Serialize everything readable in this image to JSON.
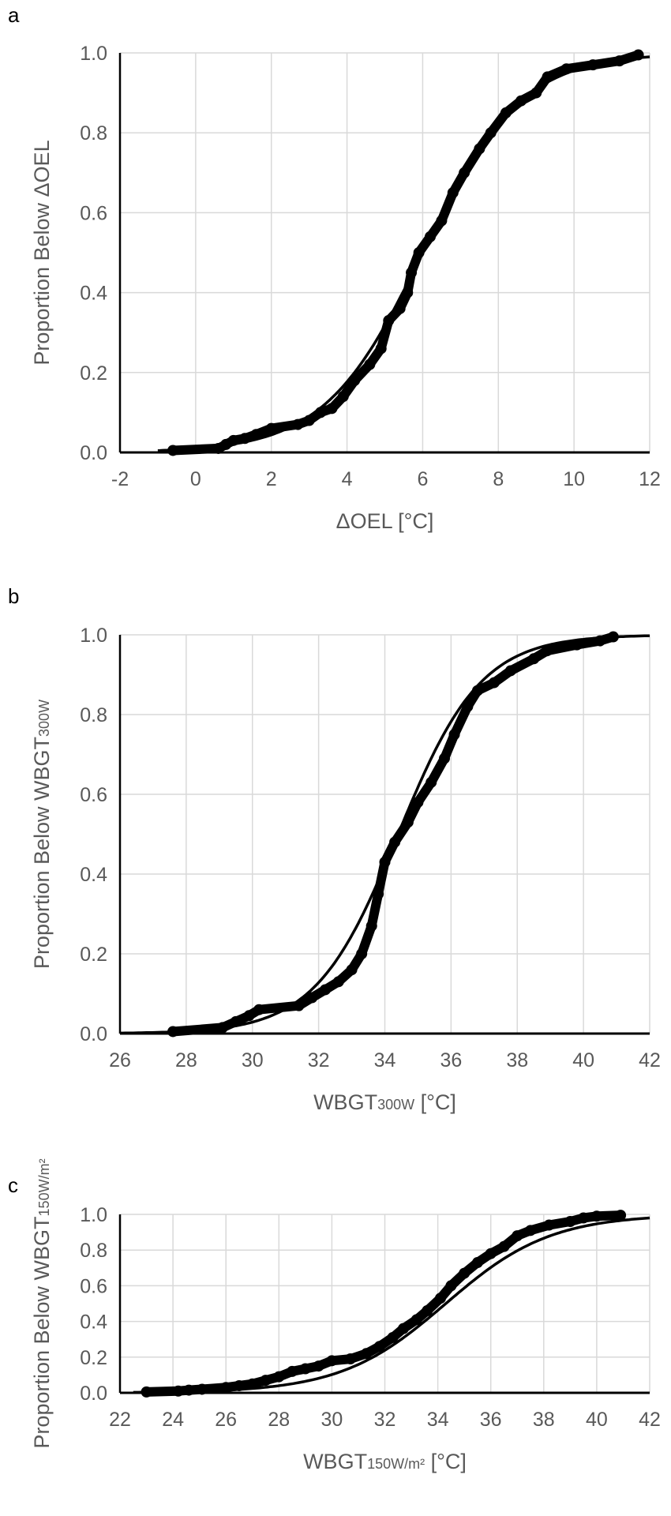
{
  "chart_data": [
    {
      "type": "scatter",
      "panel_label": "a",
      "title": "",
      "xlabel": {
        "main": "ΔOEL [°C]",
        "sub": "",
        "suffix": ""
      },
      "ylabel": {
        "main": "Proportion Below ΔOEL",
        "sub": ""
      },
      "xlim": [
        -2,
        12
      ],
      "ylim": [
        0,
        1
      ],
      "xticks": [
        -2,
        0,
        2,
        4,
        6,
        8,
        10,
        12
      ],
      "yticks": [
        "0.0",
        "0.2",
        "0.4",
        "0.6",
        "0.8",
        "1.0"
      ],
      "grid": true,
      "fit": {
        "type": "logistic",
        "mu": 6.0,
        "s": 1.3
      },
      "points": [
        [
          -0.6,
          0.005
        ],
        [
          0.6,
          0.01
        ],
        [
          0.8,
          0.02
        ],
        [
          1.0,
          0.03
        ],
        [
          1.3,
          0.035
        ],
        [
          1.6,
          0.045
        ],
        [
          2.0,
          0.06
        ],
        [
          2.7,
          0.07
        ],
        [
          3.0,
          0.08
        ],
        [
          3.3,
          0.1
        ],
        [
          3.6,
          0.11
        ],
        [
          3.9,
          0.14
        ],
        [
          4.2,
          0.18
        ],
        [
          4.6,
          0.22
        ],
        [
          4.9,
          0.26
        ],
        [
          5.1,
          0.33
        ],
        [
          5.4,
          0.36
        ],
        [
          5.6,
          0.4
        ],
        [
          5.7,
          0.45
        ],
        [
          5.9,
          0.5
        ],
        [
          6.2,
          0.54
        ],
        [
          6.5,
          0.58
        ],
        [
          6.8,
          0.65
        ],
        [
          7.1,
          0.7
        ],
        [
          7.5,
          0.76
        ],
        [
          7.8,
          0.8
        ],
        [
          8.2,
          0.85
        ],
        [
          8.6,
          0.88
        ],
        [
          9.0,
          0.9
        ],
        [
          9.3,
          0.94
        ],
        [
          9.8,
          0.96
        ],
        [
          10.5,
          0.97
        ],
        [
          11.2,
          0.98
        ],
        [
          11.7,
          0.995
        ]
      ]
    },
    {
      "type": "scatter",
      "panel_label": "b",
      "title": "",
      "xlabel": {
        "main": "WBGT",
        "sub": "300W",
        "suffix": " [°C]"
      },
      "ylabel": {
        "main": "Proportion Below WBGT",
        "sub": "300W"
      },
      "xlim": [
        26,
        42
      ],
      "ylim": [
        0,
        1
      ],
      "xticks": [
        26,
        28,
        30,
        32,
        34,
        36,
        38,
        40,
        42
      ],
      "yticks": [
        "0.0",
        "0.2",
        "0.4",
        "0.6",
        "0.8",
        "1.0"
      ],
      "grid": true,
      "fit": {
        "type": "logistic",
        "mu": 34.4,
        "s": 1.25
      },
      "points": [
        [
          27.6,
          0.005
        ],
        [
          29.1,
          0.015
        ],
        [
          29.5,
          0.03
        ],
        [
          29.9,
          0.045
        ],
        [
          30.2,
          0.06
        ],
        [
          31.4,
          0.07
        ],
        [
          31.8,
          0.09
        ],
        [
          32.2,
          0.11
        ],
        [
          32.6,
          0.13
        ],
        [
          33.0,
          0.16
        ],
        [
          33.3,
          0.2
        ],
        [
          33.6,
          0.27
        ],
        [
          33.8,
          0.35
        ],
        [
          34.0,
          0.43
        ],
        [
          34.3,
          0.48
        ],
        [
          34.7,
          0.53
        ],
        [
          35.0,
          0.58
        ],
        [
          35.4,
          0.63
        ],
        [
          35.8,
          0.69
        ],
        [
          36.1,
          0.75
        ],
        [
          36.5,
          0.82
        ],
        [
          36.8,
          0.86
        ],
        [
          37.3,
          0.88
        ],
        [
          37.8,
          0.91
        ],
        [
          38.5,
          0.94
        ],
        [
          38.9,
          0.96
        ],
        [
          39.8,
          0.975
        ],
        [
          40.5,
          0.985
        ],
        [
          40.9,
          0.995
        ]
      ]
    },
    {
      "type": "scatter",
      "panel_label": "c",
      "title": "",
      "xlabel": {
        "main": "WBGT",
        "sub": "150W/m²",
        "suffix": " [°C]"
      },
      "ylabel": {
        "main": "Proportion Below WBGT",
        "sub": "150W/m²"
      },
      "xlim": [
        22,
        42
      ],
      "ylim": [
        0,
        1
      ],
      "xticks": [
        22,
        24,
        26,
        28,
        30,
        32,
        34,
        36,
        38,
        40,
        42
      ],
      "yticks": [
        "0.0",
        "0.2",
        "0.4",
        "0.6",
        "0.8",
        "1.0"
      ],
      "grid": true,
      "fit": {
        "type": "logistic",
        "mu": 34.3,
        "s": 1.98
      },
      "points": [
        [
          23.0,
          0.005
        ],
        [
          24.2,
          0.01
        ],
        [
          24.6,
          0.015
        ],
        [
          25.1,
          0.02
        ],
        [
          26.0,
          0.03
        ],
        [
          26.5,
          0.04
        ],
        [
          27.0,
          0.05
        ],
        [
          27.5,
          0.07
        ],
        [
          28.0,
          0.09
        ],
        [
          28.5,
          0.12
        ],
        [
          29.0,
          0.135
        ],
        [
          29.5,
          0.15
        ],
        [
          30.0,
          0.18
        ],
        [
          30.7,
          0.19
        ],
        [
          31.3,
          0.22
        ],
        [
          31.8,
          0.26
        ],
        [
          32.3,
          0.31
        ],
        [
          32.7,
          0.36
        ],
        [
          33.2,
          0.41
        ],
        [
          33.6,
          0.46
        ],
        [
          34.1,
          0.53
        ],
        [
          34.5,
          0.6
        ],
        [
          35.0,
          0.67
        ],
        [
          35.5,
          0.73
        ],
        [
          36.0,
          0.78
        ],
        [
          36.5,
          0.82
        ],
        [
          37.0,
          0.88
        ],
        [
          37.5,
          0.91
        ],
        [
          38.2,
          0.94
        ],
        [
          39.0,
          0.96
        ],
        [
          39.5,
          0.98
        ],
        [
          40.0,
          0.99
        ],
        [
          40.9,
          0.995
        ]
      ]
    }
  ]
}
